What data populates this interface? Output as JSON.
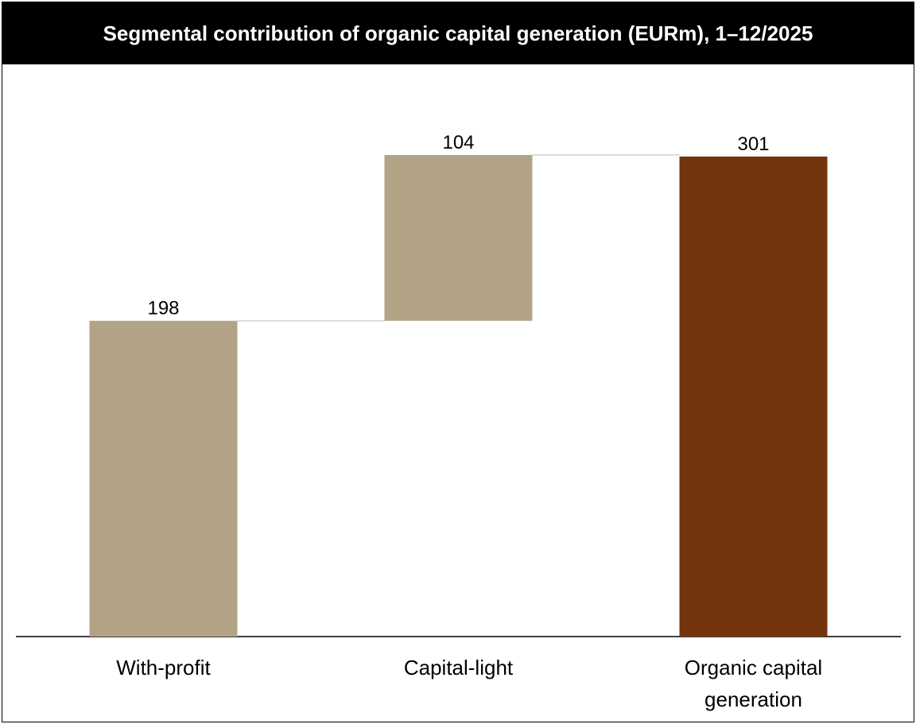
{
  "chart_data": {
    "type": "waterfall",
    "title": "Segmental contribution of organic capital generation (EURm), 1–12/2025",
    "categories": [
      "With-profit",
      "Capital-light",
      "Organic capital generation"
    ],
    "values": [
      198,
      104,
      301
    ],
    "is_total": [
      false,
      false,
      true
    ],
    "colors": [
      "#b3a386",
      "#b3a386",
      "#73340e"
    ]
  }
}
